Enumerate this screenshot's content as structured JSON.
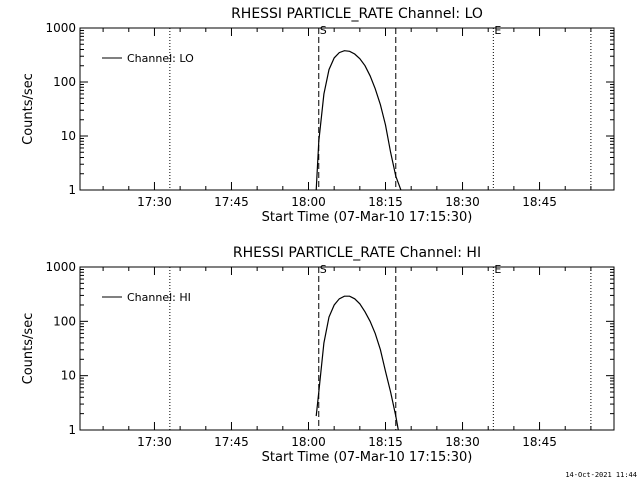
{
  "footer": {
    "timestamp": "14-Oct-2021 11:44"
  },
  "chart_data": [
    {
      "type": "line",
      "title": "RHESSI PARTICLE_RATE Channel: LO",
      "xlabel": "Start Time (07-Mar-10 17:15:30)",
      "ylabel": "Counts/sec",
      "yscale": "log",
      "ylim": [
        1,
        1000
      ],
      "xlim_minutes_after_1715": [
        0,
        104
      ],
      "xticks": [
        "17:30",
        "17:45",
        "18:00",
        "18:15",
        "18:30",
        "18:45"
      ],
      "yticks": [
        "1",
        "10",
        "100",
        "1000"
      ],
      "legend": {
        "label": "Channel: LO",
        "placement": "top-left"
      },
      "markers": [
        {
          "type": "dotted",
          "time": "17:33",
          "label": ""
        },
        {
          "type": "dashed",
          "time": "18:02",
          "label": "S"
        },
        {
          "type": "dashed",
          "time": "18:17",
          "label": ""
        },
        {
          "type": "dotted",
          "time": "18:36",
          "label": "E"
        },
        {
          "type": "dotted",
          "time": "18:55",
          "label": ""
        }
      ],
      "series": [
        {
          "name": "Channel: LO",
          "x": [
            "18:01:30",
            "18:02",
            "18:03",
            "18:04",
            "18:05",
            "18:06",
            "18:07",
            "18:08",
            "18:09",
            "18:10",
            "18:11",
            "18:12",
            "18:13",
            "18:14",
            "18:15",
            "18:16",
            "18:17",
            "18:18"
          ],
          "y": [
            1,
            8,
            60,
            170,
            280,
            350,
            380,
            370,
            330,
            270,
            200,
            130,
            75,
            38,
            16,
            5,
            1.8,
            1
          ]
        }
      ]
    },
    {
      "type": "line",
      "title": "RHESSI PARTICLE_RATE Channel: HI",
      "xlabel": "Start Time (07-Mar-10 17:15:30)",
      "ylabel": "Counts/sec",
      "yscale": "log",
      "ylim": [
        1,
        1000
      ],
      "xlim_minutes_after_1715": [
        0,
        104
      ],
      "xticks": [
        "17:30",
        "17:45",
        "18:00",
        "18:15",
        "18:30",
        "18:45"
      ],
      "yticks": [
        "1",
        "10",
        "100",
        "1000"
      ],
      "legend": {
        "label": "Channel: HI",
        "placement": "top-left"
      },
      "markers": [
        {
          "type": "dotted",
          "time": "17:33",
          "label": ""
        },
        {
          "type": "dashed",
          "time": "18:02",
          "label": "S"
        },
        {
          "type": "dashed",
          "time": "18:17",
          "label": ""
        },
        {
          "type": "dotted",
          "time": "18:36",
          "label": "E"
        },
        {
          "type": "dotted",
          "time": "18:55",
          "label": ""
        }
      ],
      "series": [
        {
          "name": "Channel: HI",
          "x": [
            "18:01:30",
            "18:02",
            "18:03",
            "18:04",
            "18:05",
            "18:06",
            "18:07",
            "18:08",
            "18:09",
            "18:10",
            "18:11",
            "18:12",
            "18:13",
            "18:14",
            "18:15",
            "18:16",
            "18:17",
            "18:17:30"
          ],
          "y": [
            1.8,
            5,
            40,
            120,
            200,
            260,
            290,
            290,
            260,
            210,
            150,
            100,
            60,
            30,
            12,
            5,
            1.8,
            1
          ]
        }
      ]
    }
  ]
}
